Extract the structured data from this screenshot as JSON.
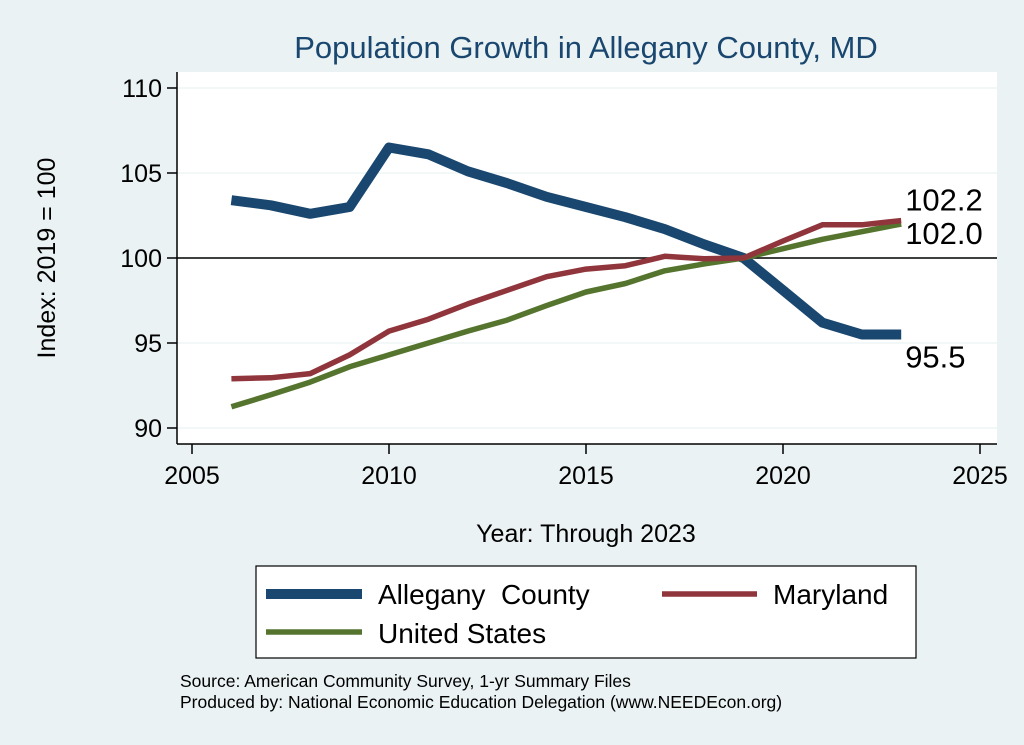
{
  "chart_data": {
    "type": "line",
    "title": "Population Growth in Allegany County, MD",
    "xlabel": "Year: Through 2023",
    "ylabel": "Index: 2019 = 100",
    "xlim": [
      2005,
      2025
    ],
    "ylim": [
      90,
      110
    ],
    "xticks": [
      2005,
      2010,
      2015,
      2020,
      2025
    ],
    "yticks": [
      90,
      95,
      100,
      105,
      110
    ],
    "x": [
      2006,
      2007,
      2008,
      2009,
      2010,
      2011,
      2012,
      2013,
      2014,
      2015,
      2016,
      2017,
      2018,
      2019,
      2020,
      2021,
      2022,
      2023
    ],
    "reference_line": 100,
    "grid": true,
    "series": [
      {
        "name": "Allegany  County",
        "color": "#1a476f",
        "values": [
          103.4,
          103.1,
          102.6,
          103.0,
          106.5,
          106.1,
          105.1,
          104.4,
          103.6,
          103.0,
          102.4,
          101.7,
          100.8,
          100.0,
          98.1,
          96.2,
          95.5,
          95.5
        ],
        "end_label": "95.5"
      },
      {
        "name": "Maryland",
        "color": "#90353b",
        "values": [
          92.9,
          92.95,
          93.2,
          94.3,
          95.7,
          96.4,
          97.3,
          98.1,
          98.9,
          99.35,
          99.55,
          100.1,
          99.95,
          100.0,
          101.0,
          101.95,
          101.95,
          102.2
        ],
        "end_label": "102.2"
      },
      {
        "name": "United States",
        "color": "#55752f",
        "values": [
          91.25,
          91.95,
          92.7,
          93.6,
          94.3,
          95.0,
          95.7,
          96.35,
          97.2,
          98.0,
          98.5,
          99.25,
          99.65,
          100.0,
          100.55,
          101.1,
          101.55,
          102.0
        ],
        "end_label": "102.0"
      }
    ],
    "notes": [
      "Source: American Community Survey, 1-yr Summary Files",
      "Produced by: National Economic Education Delegation (www.NEEDEcon.org)"
    ]
  }
}
